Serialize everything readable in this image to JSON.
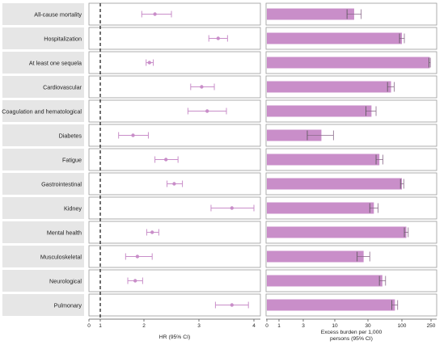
{
  "chart_data": [
    {
      "type": "forest",
      "xlabel": "HR (95% CI)",
      "xticks": [
        "0",
        "1",
        "2",
        "3",
        "4"
      ],
      "reference_line": 1,
      "categories": [
        "All-cause mortality",
        "Hospitalization",
        "At least one sequela",
        "Cardiovascular",
        "Coagulation and hematological",
        "Diabetes",
        "Fatigue",
        "Gastrointestinal",
        "Kidney",
        "Mental health",
        "Musculoskeletal",
        "Neurological",
        "Pulmonary"
      ],
      "hr": [
        2.2,
        3.35,
        2.1,
        3.05,
        3.15,
        1.75,
        2.4,
        2.55,
        3.6,
        2.15,
        1.85,
        1.8,
        3.6
      ],
      "lower": [
        1.95,
        3.18,
        2.04,
        2.85,
        2.8,
        1.42,
        2.2,
        2.42,
        3.22,
        2.05,
        1.58,
        1.63,
        3.3
      ],
      "upper": [
        2.5,
        3.52,
        2.17,
        3.28,
        3.5,
        2.08,
        2.62,
        2.7,
        4.0,
        2.27,
        2.15,
        1.97,
        3.9
      ],
      "color": "#c98ec9"
    },
    {
      "type": "bar",
      "orientation": "horizontal",
      "xlabel": "Excess burden per 1,000 persons (95% CI)",
      "xlabel_lines": [
        "Excess burden per 1,000",
        "persons (95% CI)"
      ],
      "xticks": [
        "0",
        "1",
        "3",
        "10",
        "30",
        "100",
        "250"
      ],
      "categories": [
        "All-cause mortality",
        "Hospitalization",
        "At least one sequela",
        "Cardiovascular",
        "Coagulation and hematological",
        "Diabetes",
        "Fatigue",
        "Gastrointestinal",
        "Kidney",
        "Mental health",
        "Musculoskeletal",
        "Neurological",
        "Pulmonary"
      ],
      "values": [
        19,
        100,
        240,
        68,
        34,
        6,
        45,
        100,
        37,
        115,
        26,
        50,
        78
      ],
      "lower": [
        15,
        92,
        235,
        60,
        28,
        3.5,
        40,
        95,
        32,
        108,
        21,
        45,
        70
      ],
      "upper": [
        24,
        108,
        245,
        76,
        40,
        9.5,
        51,
        106,
        43,
        122,
        32,
        56,
        86
      ],
      "color": "#c98ec9"
    }
  ]
}
